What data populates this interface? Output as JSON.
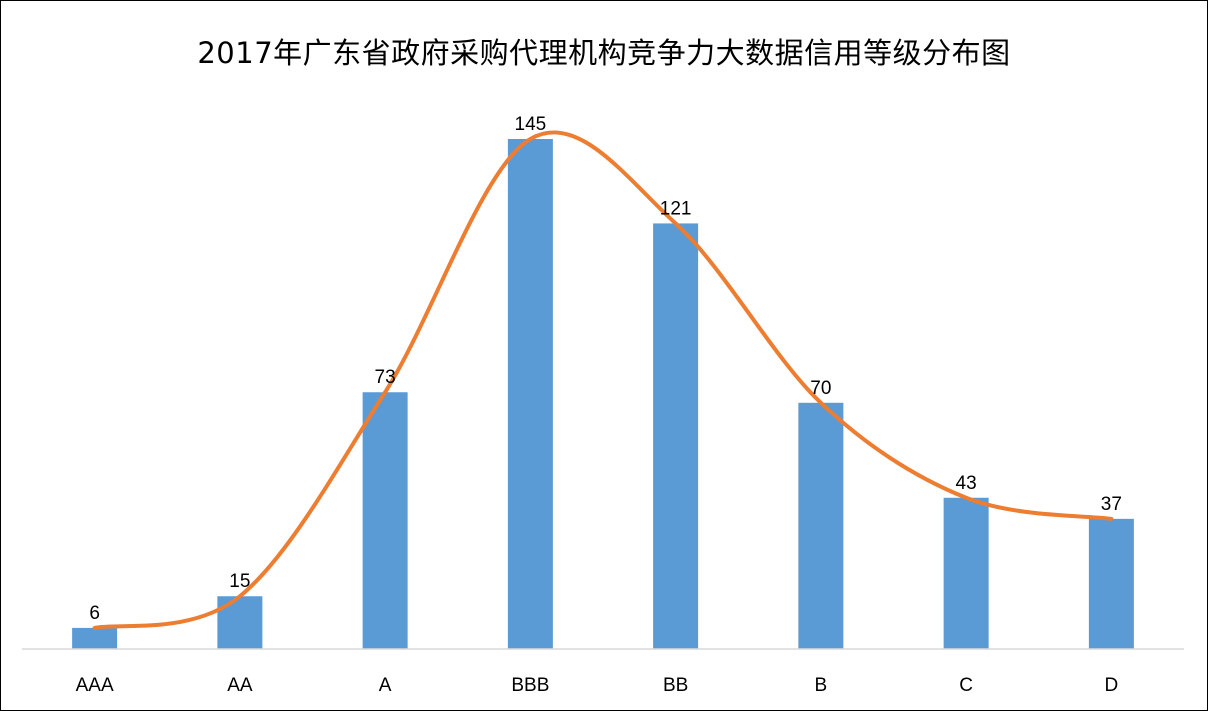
{
  "chart_data": {
    "type": "bar",
    "title": "2017年广东省政府采购代理机构竞争力大数据信用等级分布图",
    "categories": [
      "AAA",
      "AA",
      "A",
      "BBB",
      "BB",
      "B",
      "C",
      "D"
    ],
    "values": [
      6,
      15,
      73,
      145,
      121,
      70,
      43,
      37
    ],
    "xlabel": "",
    "ylabel": "",
    "ylim": [
      0,
      145
    ],
    "grid": false,
    "legend": "none",
    "data_labels": true,
    "trend_line": "smoothed",
    "colors": {
      "bar": "#5b9bd5",
      "line": "#ed7d31",
      "axis": "#d9d9d9"
    }
  }
}
